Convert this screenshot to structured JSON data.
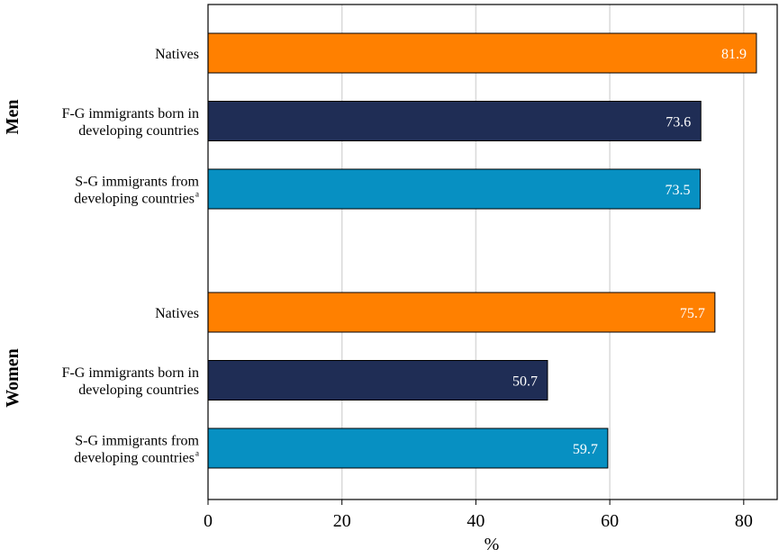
{
  "chart_data": {
    "type": "bar",
    "orientation": "horizontal",
    "xlabel": "%",
    "xlim": [
      0,
      85
    ],
    "x_ticks": [
      0,
      20,
      40,
      60,
      80
    ],
    "grid": true,
    "groups": [
      {
        "name": "Men",
        "bars": [
          {
            "label_lines": [
              "Natives"
            ],
            "superscript": "",
            "value": 81.9,
            "value_label": "81.9",
            "color": "#FF8000"
          },
          {
            "label_lines": [
              "F-G immigrants born in",
              "developing countries"
            ],
            "superscript": "",
            "value": 73.6,
            "value_label": "73.6",
            "color": "#1F2D55"
          },
          {
            "label_lines": [
              "S-G immigrants from",
              "developing countries"
            ],
            "superscript": "a",
            "value": 73.5,
            "value_label": "73.5",
            "color": "#0790C2"
          }
        ]
      },
      {
        "name": "Women",
        "bars": [
          {
            "label_lines": [
              "Natives"
            ],
            "superscript": "",
            "value": 75.7,
            "value_label": "75.7",
            "color": "#FF8000"
          },
          {
            "label_lines": [
              "F-G immigrants born in",
              "developing countries"
            ],
            "superscript": "",
            "value": 50.7,
            "value_label": "50.7",
            "color": "#1F2D55"
          },
          {
            "label_lines": [
              "S-G immigrants from",
              "developing countries"
            ],
            "superscript": "a",
            "value": 59.7,
            "value_label": "59.7",
            "color": "#0790C2"
          }
        ]
      }
    ]
  }
}
